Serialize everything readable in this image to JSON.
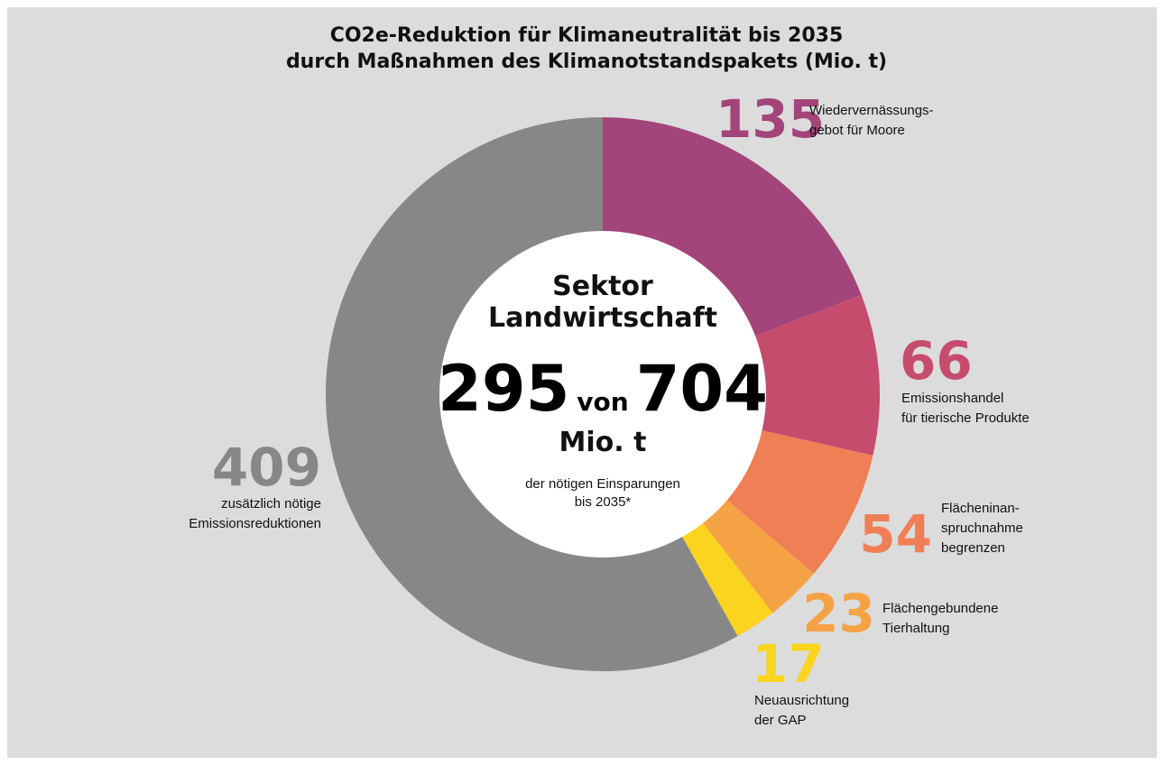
{
  "chart_data": {
    "type": "donut",
    "title": [
      "CO2e-Reduktion für Klimaneutralität bis 2035",
      "durch Maßnahmen des Klimanotstandspakets (Mio. t)"
    ],
    "categories": [
      [
        "Wiedervernässungs-",
        "gebot für Moore"
      ],
      [
        "Emissionshandel",
        "für tierische Produkte"
      ],
      [
        "Flächeninan-",
        "spruchnahme",
        "begrenzen"
      ],
      [
        "Flächengebundene",
        "Tierhaltung"
      ],
      [
        "Neuausrichtung",
        "der GAP"
      ],
      [
        "zusätzlich nötige",
        "Emissionsreduktionen"
      ]
    ],
    "values": [
      135,
      66,
      54,
      23,
      17,
      409
    ],
    "colors": [
      "#a3447a",
      "#c64c6e",
      "#f07f55",
      "#f5a244",
      "#fad41f",
      "#878787"
    ],
    "center": {
      "lines": [
        "Sektor",
        "Landwirtschaft"
      ],
      "value": 295,
      "connector": "von",
      "total": 704,
      "unit": "Mio. t",
      "note": [
        "der nötigen Einsparungen",
        "bis 2035*"
      ]
    }
  }
}
